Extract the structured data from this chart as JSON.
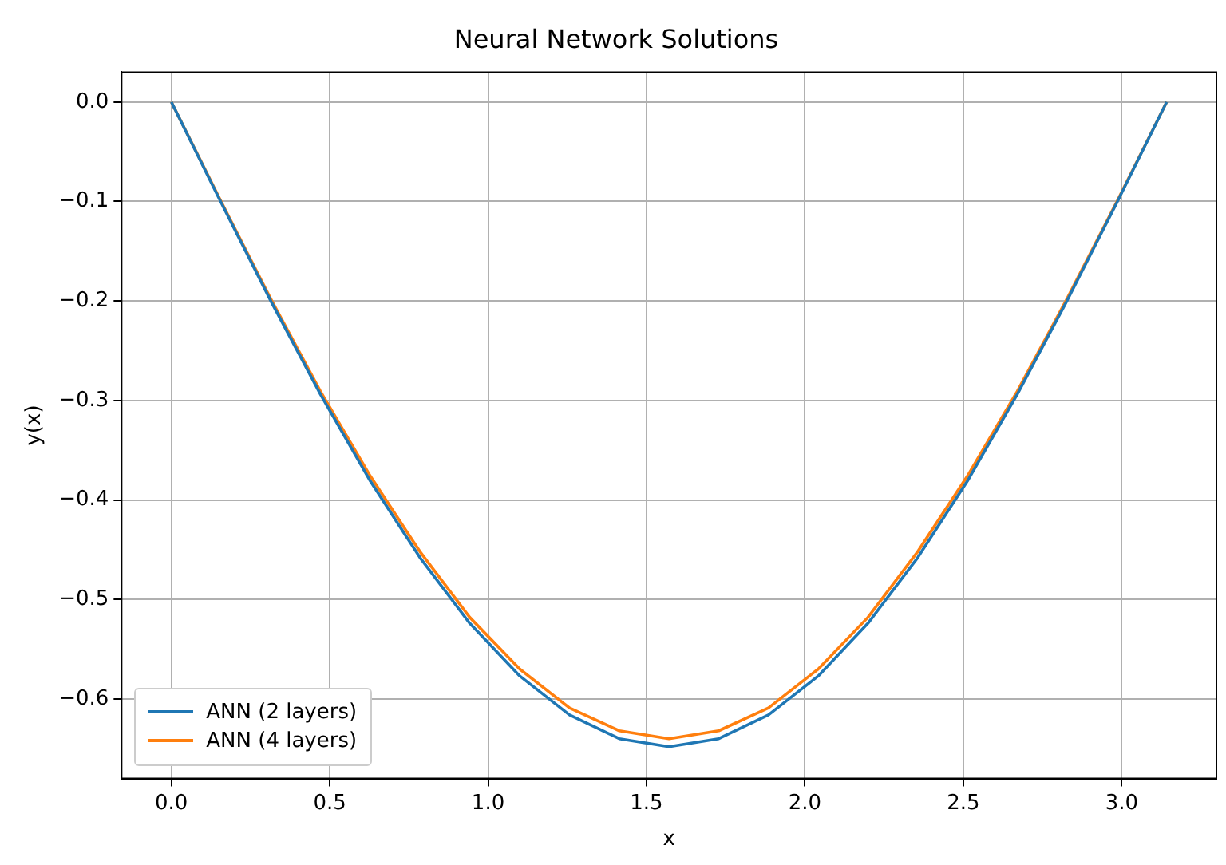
{
  "chart_data": {
    "type": "line",
    "title": "Neural Network Solutions",
    "xlabel": "x",
    "ylabel": "y(x)",
    "x": [
      0,
      0.157,
      0.314,
      0.471,
      0.628,
      0.785,
      0.942,
      1.1,
      1.257,
      1.414,
      1.571,
      1.728,
      1.885,
      2.042,
      2.199,
      2.356,
      2.513,
      2.67,
      2.827,
      2.985,
      3.142
    ],
    "series": [
      {
        "name": "ANN (2 layers)",
        "color": "#1f77b4",
        "values": [
          0,
          -0.101,
          -0.2,
          -0.294,
          -0.381,
          -0.458,
          -0.524,
          -0.577,
          -0.616,
          -0.64,
          -0.648,
          -0.64,
          -0.616,
          -0.577,
          -0.524,
          -0.458,
          -0.381,
          -0.294,
          -0.2,
          -0.101,
          0
        ]
      },
      {
        "name": "ANN (4 layers)",
        "color": "#ff7f0e",
        "values": [
          0,
          -0.1,
          -0.198,
          -0.291,
          -0.376,
          -0.452,
          -0.518,
          -0.57,
          -0.609,
          -0.632,
          -0.64,
          -0.632,
          -0.609,
          -0.57,
          -0.518,
          -0.452,
          -0.376,
          -0.291,
          -0.198,
          -0.1,
          0
        ]
      }
    ],
    "xlim": [
      -0.157,
      3.299
    ],
    "ylim": [
      -0.68,
      0.03
    ],
    "xticks": [
      {
        "value": 0,
        "label": "0.0"
      },
      {
        "value": 0.5,
        "label": "0.5"
      },
      {
        "value": 1,
        "label": "1.0"
      },
      {
        "value": 1.5,
        "label": "1.5"
      },
      {
        "value": 2,
        "label": "2.0"
      },
      {
        "value": 2.5,
        "label": "2.5"
      },
      {
        "value": 3,
        "label": "3.0"
      }
    ],
    "yticks": [
      {
        "value": 0,
        "label": "0.0"
      },
      {
        "value": -0.1,
        "label": "−0.1"
      },
      {
        "value": -0.2,
        "label": "−0.2"
      },
      {
        "value": -0.3,
        "label": "−0.3"
      },
      {
        "value": -0.4,
        "label": "−0.4"
      },
      {
        "value": -0.5,
        "label": "−0.5"
      },
      {
        "value": -0.6,
        "label": "−0.6"
      }
    ],
    "grid": true,
    "legend": "bottom left",
    "marker": "none",
    "line_style": "solid"
  }
}
